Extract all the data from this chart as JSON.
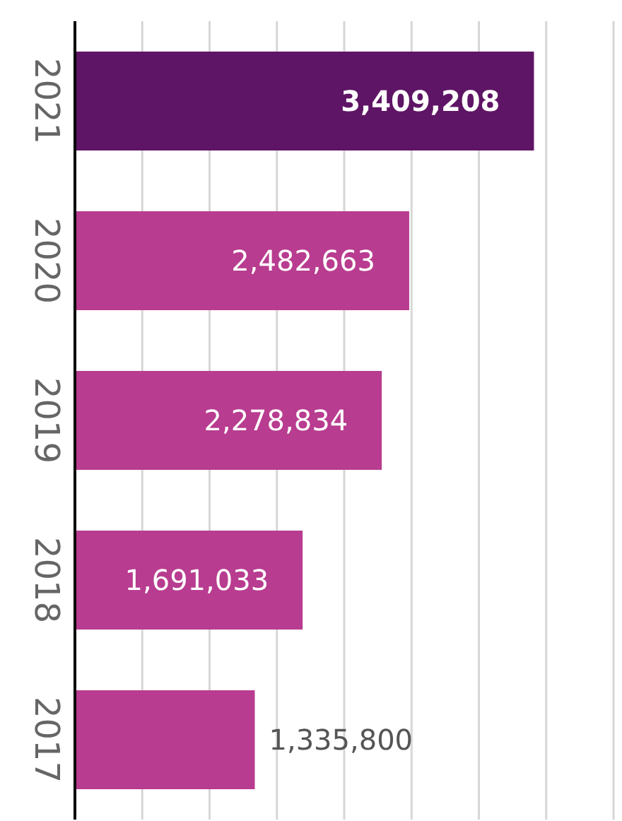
{
  "chart_data": {
    "type": "bar",
    "orientation": "horizontal",
    "categories": [
      "2021",
      "2020",
      "2019",
      "2018",
      "2017"
    ],
    "values": [
      3409208,
      2482663,
      2278834,
      1691033,
      1335800
    ],
    "colors": [
      "#5f1565",
      "#b83c8f",
      "#b83c8f",
      "#b83c8f",
      "#b83c8f"
    ],
    "xlim": [
      0,
      4000000
    ],
    "xticks": [
      {
        "value": 0,
        "label": null
      },
      {
        "value": 500000,
        "label": null
      },
      {
        "value": 1000000,
        "label": null
      },
      {
        "value": 1500000,
        "label": null
      },
      {
        "value": 2000000,
        "label": null
      },
      {
        "value": 2500000,
        "label": null
      },
      {
        "value": 3000000,
        "label": null
      },
      {
        "value": 3500000,
        "label": null
      },
      {
        "value": 4000000,
        "label": null
      }
    ],
    "value_labels": [
      "3,409,208",
      "2,482,663",
      "2,278,834",
      "1,691,033",
      "1,335,800"
    ],
    "grid": "x",
    "tick_labels": "y"
  }
}
